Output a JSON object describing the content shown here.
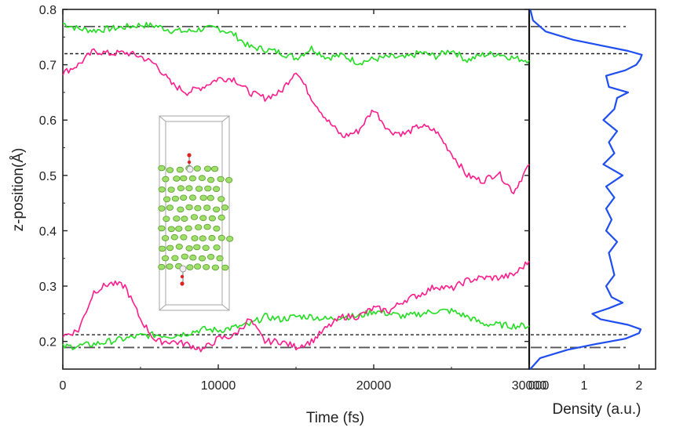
{
  "chart_data": [
    {
      "type": "line",
      "xlabel": "Time (fs)",
      "ylabel": "z-position(Å)",
      "xlim": [
        0,
        30000
      ],
      "ylim": [
        0.15,
        0.8
      ],
      "xticks": [
        "0",
        "10000",
        "20000",
        "30000"
      ],
      "yticks": [
        "0.2",
        "0.3",
        "0.4",
        "0.5",
        "0.6",
        "0.7",
        "0.8"
      ],
      "grid": false,
      "legend": "none",
      "reference_lines": [
        {
          "style": "dash-dot",
          "y": 0.769
        },
        {
          "style": "dashed",
          "y": 0.72
        },
        {
          "style": "dashed",
          "y": 0.212
        },
        {
          "style": "dash-dot",
          "y": 0.189
        }
      ],
      "series": [
        {
          "color": "#22dd22",
          "x": [
            0,
            1000,
            2000,
            3000,
            4000,
            5000,
            6000,
            7000,
            8000,
            9000,
            10000,
            11000,
            12000,
            13000,
            14000,
            15000,
            16000,
            17000,
            18000,
            19000,
            20000,
            21000,
            22000,
            23000,
            24000,
            25000,
            26000,
            27000,
            28000,
            29000,
            30000
          ],
          "y": [
            0.775,
            0.765,
            0.762,
            0.765,
            0.768,
            0.772,
            0.77,
            0.762,
            0.76,
            0.765,
            0.766,
            0.755,
            0.732,
            0.728,
            0.722,
            0.712,
            0.73,
            0.713,
            0.717,
            0.704,
            0.71,
            0.714,
            0.712,
            0.722,
            0.715,
            0.727,
            0.708,
            0.718,
            0.72,
            0.712,
            0.708
          ]
        },
        {
          "color": "#ff1c8c",
          "x": [
            0,
            1000,
            2000,
            3000,
            4000,
            5000,
            6000,
            7000,
            8000,
            9000,
            10000,
            11000,
            12000,
            13000,
            14000,
            15000,
            16000,
            17000,
            18000,
            19000,
            20000,
            21000,
            22000,
            23000,
            24000,
            25000,
            26000,
            27000,
            28000,
            29000,
            30000
          ],
          "y": [
            0.685,
            0.7,
            0.725,
            0.72,
            0.722,
            0.715,
            0.7,
            0.665,
            0.65,
            0.66,
            0.675,
            0.675,
            0.65,
            0.64,
            0.65,
            0.69,
            0.64,
            0.6,
            0.57,
            0.58,
            0.62,
            0.58,
            0.575,
            0.59,
            0.58,
            0.54,
            0.5,
            0.49,
            0.505,
            0.47,
            0.52
          ]
        },
        {
          "color": "#22dd22",
          "x": [
            0,
            1000,
            2000,
            3000,
            4000,
            5000,
            6000,
            7000,
            8000,
            9000,
            10000,
            11000,
            12000,
            13000,
            14000,
            15000,
            16000,
            17000,
            18000,
            19000,
            20000,
            21000,
            22000,
            23000,
            24000,
            25000,
            26000,
            27000,
            28000,
            29000,
            30000
          ],
          "y": [
            0.19,
            0.192,
            0.195,
            0.2,
            0.205,
            0.21,
            0.212,
            0.21,
            0.215,
            0.222,
            0.22,
            0.225,
            0.23,
            0.245,
            0.24,
            0.245,
            0.245,
            0.24,
            0.245,
            0.245,
            0.255,
            0.25,
            0.245,
            0.25,
            0.255,
            0.255,
            0.245,
            0.232,
            0.23,
            0.228,
            0.228
          ]
        },
        {
          "color": "#ff1c8c",
          "x": [
            0,
            1000,
            2000,
            3000,
            4000,
            5000,
            6000,
            7000,
            8000,
            9000,
            10000,
            11000,
            12000,
            13000,
            14000,
            15000,
            16000,
            17000,
            18000,
            19000,
            20000,
            21000,
            22000,
            23000,
            24000,
            25000,
            26000,
            27000,
            28000,
            29000,
            30000
          ],
          "y": [
            0.21,
            0.22,
            0.29,
            0.305,
            0.3,
            0.24,
            0.2,
            0.2,
            0.195,
            0.185,
            0.205,
            0.21,
            0.24,
            0.2,
            0.2,
            0.19,
            0.2,
            0.225,
            0.245,
            0.245,
            0.26,
            0.255,
            0.275,
            0.285,
            0.3,
            0.295,
            0.31,
            0.315,
            0.315,
            0.32,
            0.345
          ]
        }
      ]
    },
    {
      "type": "line",
      "xlabel": "Density (a.u.)",
      "xlim": [
        0,
        2.3
      ],
      "ylim": [
        0.15,
        0.8
      ],
      "xticks": [
        "000",
        "1",
        "2"
      ],
      "reference_lines": [
        {
          "style": "dash-dot",
          "y": 0.769
        },
        {
          "style": "dashed",
          "y": 0.72
        },
        {
          "style": "dashed",
          "y": 0.212
        },
        {
          "style": "dash-dot",
          "y": 0.189
        }
      ],
      "series": [
        {
          "color": "#1f4ef0",
          "z": [
            0.15,
            0.17,
            0.185,
            0.195,
            0.205,
            0.215,
            0.222,
            0.23,
            0.24,
            0.25,
            0.26,
            0.27,
            0.28,
            0.3,
            0.32,
            0.34,
            0.36,
            0.38,
            0.4,
            0.42,
            0.44,
            0.46,
            0.48,
            0.5,
            0.52,
            0.54,
            0.56,
            0.58,
            0.6,
            0.62,
            0.64,
            0.65,
            0.66,
            0.68,
            0.69,
            0.7,
            0.71,
            0.718,
            0.725,
            0.735,
            0.745,
            0.76,
            0.78,
            0.8
          ],
          "density": [
            0.02,
            0.2,
            0.7,
            1.2,
            1.75,
            2.0,
            2.03,
            1.8,
            1.3,
            1.15,
            1.45,
            1.7,
            1.5,
            1.4,
            1.55,
            1.5,
            1.45,
            1.6,
            1.4,
            1.5,
            1.4,
            1.55,
            1.4,
            1.7,
            1.35,
            1.55,
            1.45,
            1.6,
            1.35,
            1.55,
            1.6,
            1.8,
            1.45,
            1.4,
            1.75,
            1.95,
            2.02,
            2.05,
            1.8,
            1.3,
            0.8,
            0.3,
            0.07,
            0.02
          ]
        }
      ]
    }
  ]
}
